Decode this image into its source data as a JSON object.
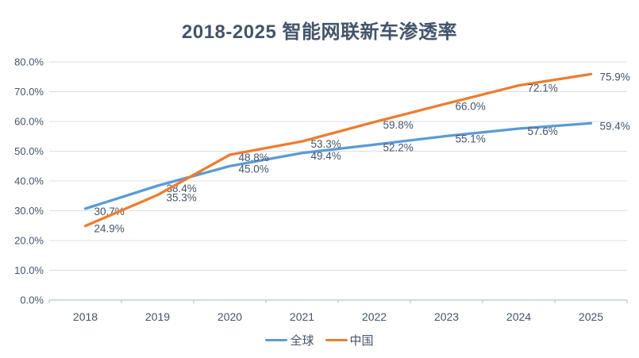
{
  "chart_data": {
    "type": "line",
    "title": "2018-2025 智能网联新车渗透率",
    "categories": [
      "2018",
      "2019",
      "2020",
      "2021",
      "2022",
      "2023",
      "2024",
      "2025"
    ],
    "series": [
      {
        "name": "全球",
        "color": "#5B9BD5",
        "values": [
          30.7,
          38.4,
          45.0,
          49.4,
          52.2,
          55.1,
          57.6,
          59.4
        ]
      },
      {
        "name": "中国",
        "color": "#ED7D31",
        "values": [
          24.9,
          35.3,
          48.8,
          53.3,
          59.8,
          66.0,
          72.1,
          75.9
        ]
      }
    ],
    "xlabel": "",
    "ylabel": "",
    "ylim": [
      0,
      80
    ],
    "ytick_step": 10,
    "ytick_format": "percent_one_decimal",
    "data_label_format": "percent_one_decimal",
    "grid": true,
    "legend_position": "bottom"
  },
  "style": {
    "title_color": "#44546A",
    "text_color": "#44546A",
    "gridline_color": "#D8DFE8",
    "axis_color": "#B9C3CF",
    "background": "#FFFFFF"
  }
}
